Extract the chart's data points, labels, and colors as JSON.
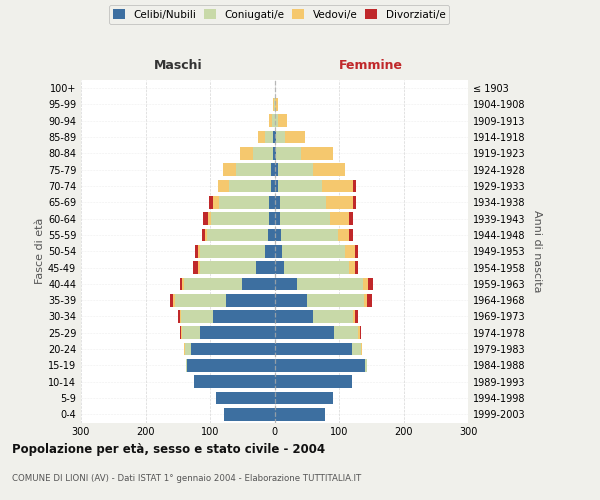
{
  "age_groups": [
    "0-4",
    "5-9",
    "10-14",
    "15-19",
    "20-24",
    "25-29",
    "30-34",
    "35-39",
    "40-44",
    "45-49",
    "50-54",
    "55-59",
    "60-64",
    "65-69",
    "70-74",
    "75-79",
    "80-84",
    "85-89",
    "90-94",
    "95-99",
    "100+"
  ],
  "birth_years": [
    "1999-2003",
    "1994-1998",
    "1989-1993",
    "1984-1988",
    "1979-1983",
    "1974-1978",
    "1969-1973",
    "1964-1968",
    "1959-1963",
    "1954-1958",
    "1949-1953",
    "1944-1948",
    "1939-1943",
    "1934-1938",
    "1929-1933",
    "1924-1928",
    "1919-1923",
    "1914-1918",
    "1909-1913",
    "1904-1908",
    "≤ 1903"
  ],
  "male_celibi": [
    78,
    90,
    125,
    135,
    130,
    115,
    95,
    75,
    50,
    28,
    15,
    10,
    8,
    8,
    5,
    5,
    3,
    3,
    0,
    0,
    0
  ],
  "male_coniugati": [
    0,
    0,
    0,
    2,
    8,
    28,
    50,
    80,
    90,
    88,
    100,
    95,
    90,
    78,
    65,
    55,
    30,
    12,
    4,
    1,
    0
  ],
  "male_vedovi": [
    0,
    0,
    0,
    0,
    2,
    2,
    2,
    2,
    3,
    3,
    3,
    3,
    5,
    10,
    18,
    20,
    20,
    10,
    5,
    2,
    0
  ],
  "male_divorziati": [
    0,
    0,
    0,
    0,
    0,
    2,
    2,
    5,
    3,
    7,
    5,
    5,
    8,
    5,
    0,
    0,
    0,
    0,
    0,
    0,
    0
  ],
  "female_nubili": [
    78,
    90,
    120,
    140,
    120,
    92,
    60,
    50,
    35,
    15,
    12,
    10,
    8,
    8,
    5,
    5,
    3,
    2,
    0,
    0,
    0
  ],
  "female_coniugate": [
    0,
    0,
    0,
    4,
    14,
    38,
    62,
    88,
    102,
    100,
    98,
    88,
    78,
    72,
    68,
    55,
    38,
    15,
    5,
    1,
    0
  ],
  "female_vedove": [
    0,
    0,
    0,
    0,
    2,
    2,
    3,
    5,
    8,
    10,
    15,
    18,
    30,
    42,
    48,
    50,
    50,
    30,
    15,
    5,
    0
  ],
  "female_divorziate": [
    0,
    0,
    0,
    0,
    0,
    2,
    4,
    8,
    8,
    5,
    5,
    5,
    5,
    5,
    5,
    0,
    0,
    0,
    0,
    0,
    0
  ],
  "colors": {
    "celibi_nubili": "#3d6fa0",
    "coniugati": "#c8d9a8",
    "vedovi": "#f5c86e",
    "divorziati": "#c0282a"
  },
  "title": "Popolazione per età, sesso e stato civile - 2004",
  "subtitle": "COMUNE DI LIONI (AV) - Dati ISTAT 1° gennaio 2004 - Elaborazione TUTTITALIA.IT",
  "xlabel_left": "Maschi",
  "xlabel_right": "Femmine",
  "ylabel_left": "Fasce di età",
  "ylabel_right": "Anni di nascita",
  "xlim": 300,
  "bg_color": "#f0f0eb",
  "plot_bg": "#ffffff"
}
